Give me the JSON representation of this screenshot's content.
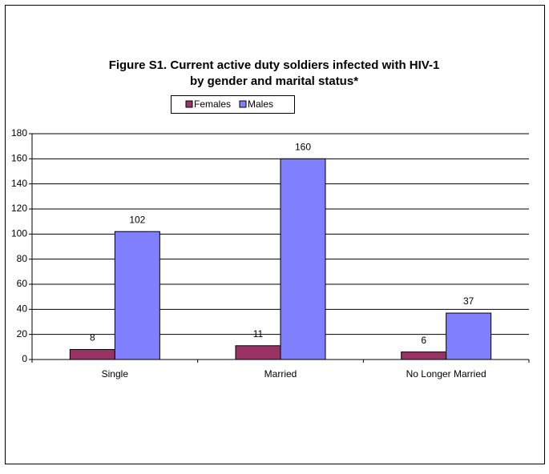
{
  "chart_data": {
    "type": "bar",
    "title": [
      "Figure S1. Current active duty soldiers infected with HIV-1",
      "by gender and marital status*"
    ],
    "categories": [
      "Single",
      "Married",
      "No Longer Married"
    ],
    "series": [
      {
        "name": "Females",
        "color": "#993366",
        "values": [
          8,
          11,
          6
        ]
      },
      {
        "name": "Males",
        "color": "#8080ff",
        "values": [
          102,
          160,
          37
        ]
      }
    ],
    "ylim": [
      0,
      180
    ],
    "yticks": [
      0,
      20,
      40,
      60,
      80,
      100,
      120,
      140,
      160,
      180
    ],
    "grid": true,
    "legend": "top"
  }
}
